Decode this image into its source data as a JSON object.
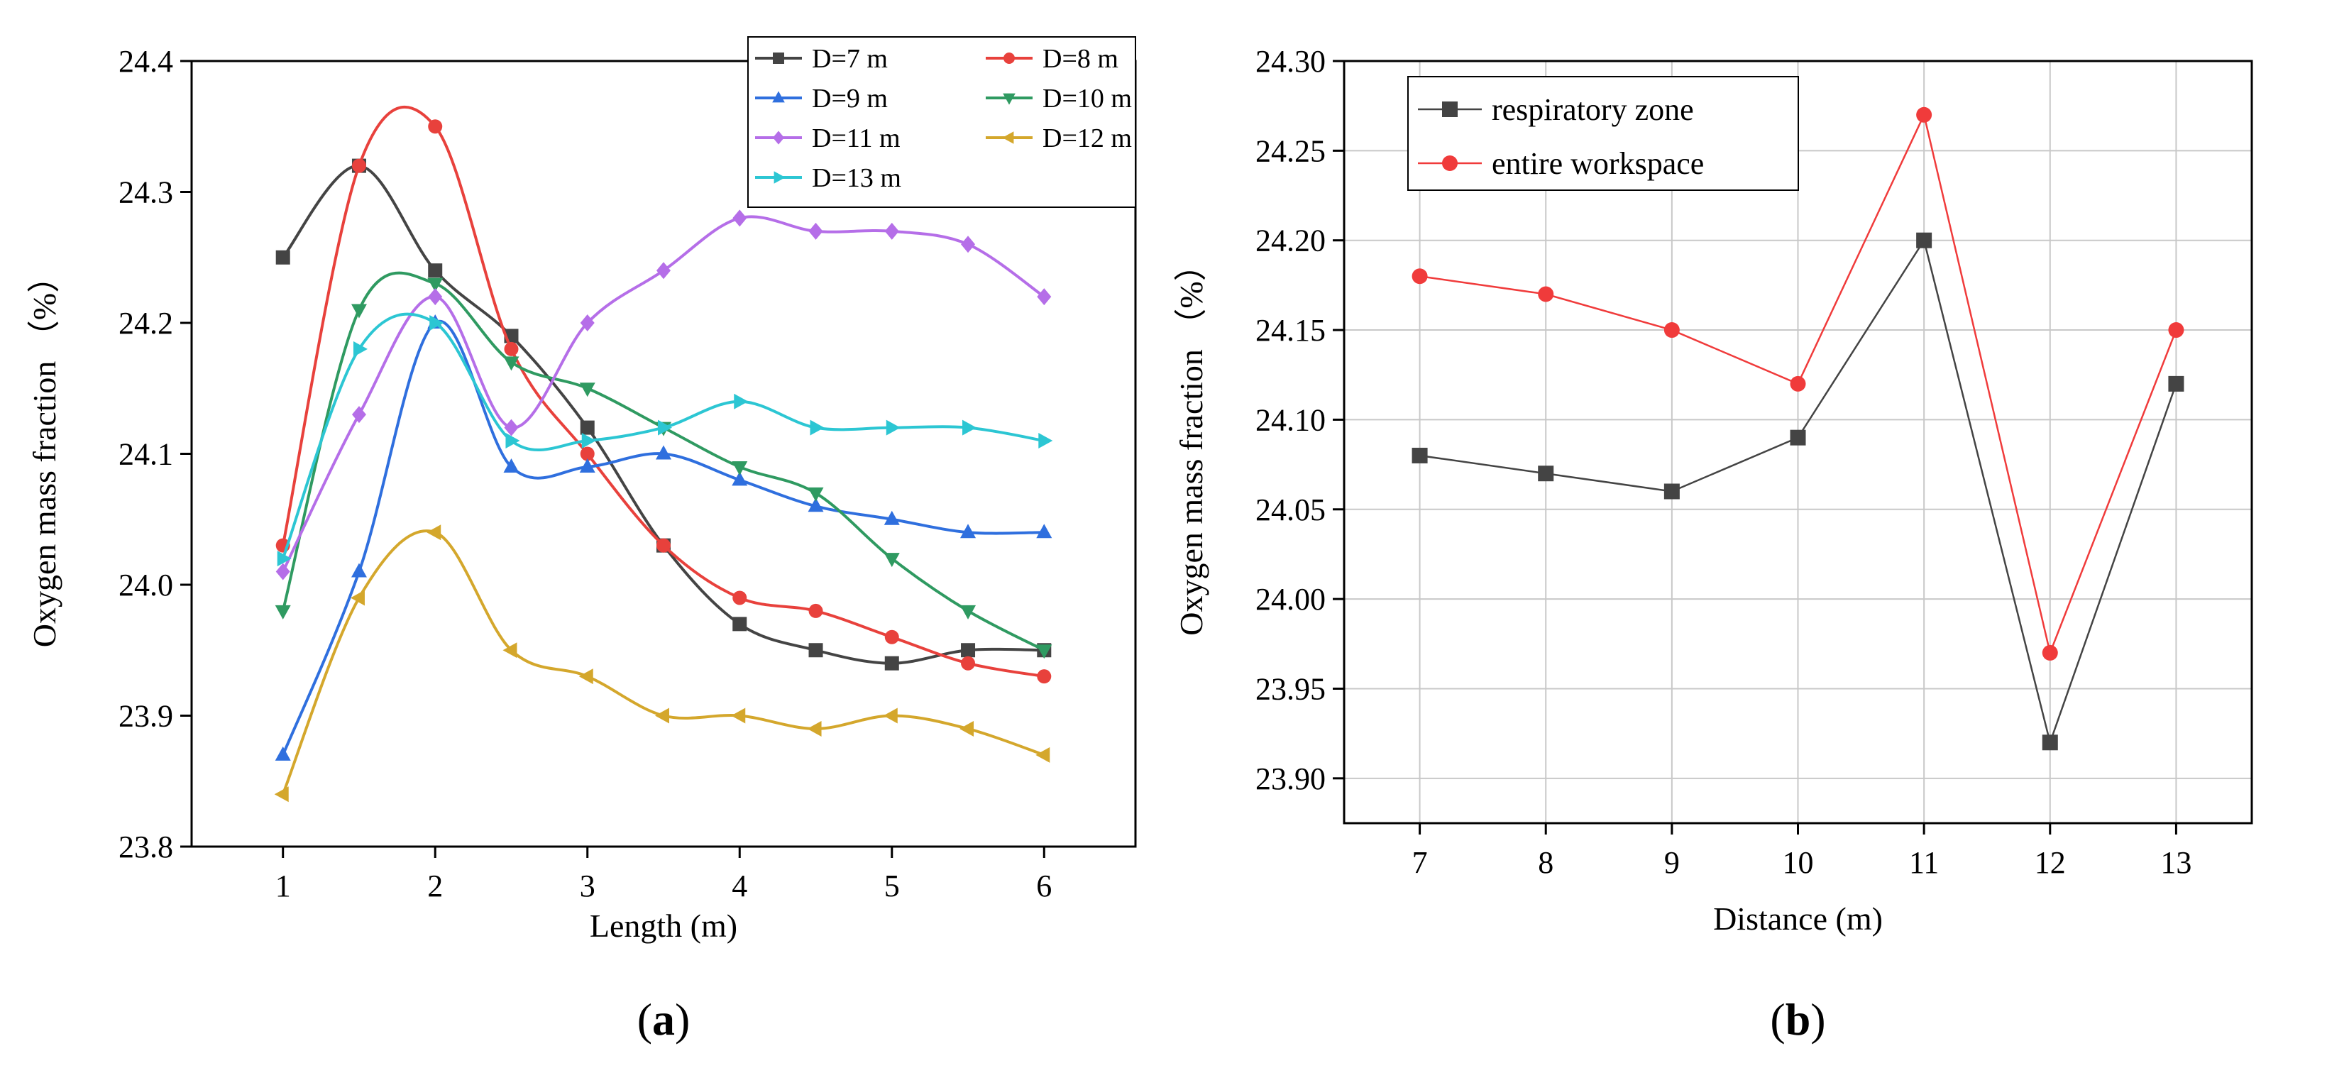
{
  "chart_data": [
    {
      "type": "line",
      "panel_label": "a",
      "xlabel": "Length (m)",
      "ylabel": "Oxygen mass fraction （%）",
      "xlim": [
        0.4,
        6.6
      ],
      "ylim": [
        23.8,
        24.4
      ],
      "xticks": [
        "1",
        "2",
        "3",
        "4",
        "5",
        "6"
      ],
      "yticks": [
        "23.8",
        "23.9",
        "24.0",
        "24.1",
        "24.2",
        "24.3",
        "24.4"
      ],
      "grid": false,
      "smooth": true,
      "legend": "top-right",
      "x": [
        1,
        1.5,
        2,
        2.5,
        3,
        3.5,
        4,
        4.5,
        5,
        5.5,
        6
      ],
      "series": [
        {
          "name": "D=7 m",
          "color": "#444444",
          "marker": "square",
          "values": [
            24.25,
            24.32,
            24.24,
            24.19,
            24.12,
            24.03,
            23.97,
            23.95,
            23.94,
            23.95,
            23.95
          ]
        },
        {
          "name": "D=8 m",
          "color": "#e8413c",
          "marker": "circle",
          "values": [
            24.03,
            24.32,
            24.35,
            24.18,
            24.1,
            24.03,
            23.99,
            23.98,
            23.96,
            23.94,
            23.93
          ]
        },
        {
          "name": "D=9 m",
          "color": "#2f6fde",
          "marker": "triangle-up",
          "values": [
            23.87,
            24.01,
            24.2,
            24.09,
            24.09,
            24.1,
            24.08,
            24.06,
            24.05,
            24.04,
            24.04
          ]
        },
        {
          "name": "D=10 m",
          "color": "#2f9a61",
          "marker": "triangle-down",
          "values": [
            23.98,
            24.21,
            24.23,
            24.17,
            24.15,
            24.12,
            24.09,
            24.07,
            24.02,
            23.98,
            23.95
          ]
        },
        {
          "name": "D=11 m",
          "color": "#b56ee8",
          "marker": "diamond",
          "values": [
            24.01,
            24.13,
            24.22,
            24.12,
            24.2,
            24.24,
            24.28,
            24.27,
            24.27,
            24.26,
            24.22
          ]
        },
        {
          "name": "D=12 m",
          "color": "#d4a72c",
          "marker": "triangle-left",
          "values": [
            23.84,
            23.99,
            24.04,
            23.95,
            23.93,
            23.9,
            23.9,
            23.89,
            23.9,
            23.89,
            23.87
          ]
        },
        {
          "name": "D=13 m",
          "color": "#2cc6d3",
          "marker": "triangle-right",
          "values": [
            24.02,
            24.18,
            24.2,
            24.11,
            24.11,
            24.12,
            24.14,
            24.12,
            24.12,
            24.12,
            24.11
          ]
        }
      ]
    },
    {
      "type": "line",
      "panel_label": "b",
      "xlabel": "Distance (m)",
      "ylabel": "Oxygen mass fraction （%）",
      "xlim": [
        6.4,
        13.6
      ],
      "ylim": [
        23.875,
        24.3
      ],
      "xticks": [
        "7",
        "8",
        "9",
        "10",
        "11",
        "12",
        "13"
      ],
      "yticks": [
        "23.90",
        "23.95",
        "24.00",
        "24.05",
        "24.10",
        "24.15",
        "24.20",
        "24.25",
        "24.30"
      ],
      "grid": true,
      "smooth": false,
      "legend": "top-left",
      "x": [
        7,
        8,
        9,
        10,
        11,
        12,
        13
      ],
      "series": [
        {
          "name": "respiratory zone",
          "color": "#444444",
          "marker": "square",
          "values": [
            24.08,
            24.07,
            24.06,
            24.09,
            24.2,
            23.92,
            24.12
          ]
        },
        {
          "name": "entire workspace",
          "color": "#f03b3b",
          "marker": "circle",
          "values": [
            24.18,
            24.17,
            24.15,
            24.12,
            24.27,
            23.97,
            24.15
          ]
        }
      ]
    }
  ]
}
